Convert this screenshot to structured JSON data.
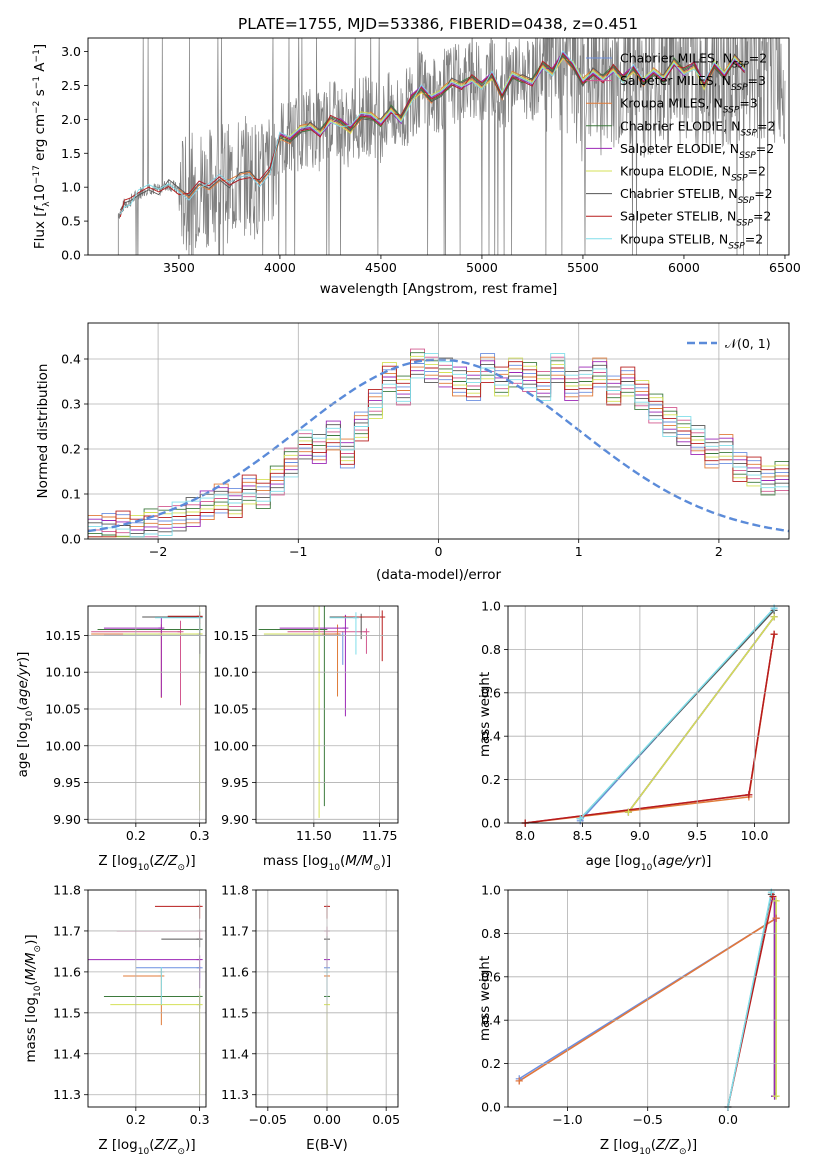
{
  "title": "PLATE=1755, MJD=53386, FIBERID=0438, z=0.451",
  "palette": [
    "#6b8fe0",
    "#d2588f",
    "#e07b39",
    "#3d7a3d",
    "#9b26b6",
    "#d4e157",
    "#555555",
    "#b71c1c",
    "#80deea"
  ],
  "legend": [
    {
      "name": "Chabrier MILES",
      "nssp": "2"
    },
    {
      "name": "Salpeter MILES",
      "nssp": "3"
    },
    {
      "name": "Kroupa MILES",
      "nssp": "3"
    },
    {
      "name": "Chabrier ELODIE",
      "nssp": "2"
    },
    {
      "name": "Salpeter ELODIE",
      "nssp": "2"
    },
    {
      "name": "Kroupa ELODIE",
      "nssp": "2"
    },
    {
      "name": "Chabrier STELIB",
      "nssp": "2"
    },
    {
      "name": "Salpeter STELIB",
      "nssp": "2"
    },
    {
      "name": "Kroupa STELIB",
      "nssp": "2"
    }
  ],
  "chart_data": [
    {
      "id": "spectrum",
      "type": "line",
      "xlabel": "wavelength [Angstrom, rest frame]",
      "ylabel": "Flux [f_λ 10^-17 erg cm^-2 s^-1 A^-1]",
      "xlim": [
        3050,
        6520
      ],
      "ylim": [
        0,
        3.2
      ],
      "xticks": [
        "3500",
        "4000",
        "4500",
        "5000",
        "5500",
        "6000",
        "6500"
      ],
      "yticks": [
        "0.0",
        "0.5",
        "1.0",
        "1.5",
        "2.0",
        "2.5",
        "3.0"
      ],
      "grid": false,
      "legend_position": "top-right",
      "data_color": "#808080",
      "data_start": 3200,
      "data_end": 6500,
      "model_x": [
        3210,
        3230,
        3260,
        3300,
        3350,
        3400,
        3450,
        3500,
        3550,
        3600,
        3650,
        3700,
        3750,
        3800,
        3850,
        3900,
        3950,
        4000,
        4050,
        4100,
        4150,
        4200,
        4250,
        4300,
        4350,
        4400,
        4450,
        4500,
        4550,
        4600,
        4650,
        4700,
        4750,
        4800,
        4850,
        4900,
        4950,
        5000,
        5050,
        5100,
        5150,
        5200,
        5250,
        5300,
        5350,
        5400,
        5450,
        5500,
        5550,
        5600,
        5650,
        5700,
        5750,
        5800,
        5850,
        5900,
        5950,
        6000,
        6050,
        6100,
        6150,
        6200,
        6250,
        6300
      ],
      "model_y": [
        0.62,
        0.75,
        0.8,
        0.9,
        1.0,
        0.95,
        1.05,
        0.95,
        0.85,
        1.05,
        1.0,
        1.15,
        1.05,
        1.15,
        1.2,
        1.05,
        1.25,
        1.75,
        1.7,
        1.85,
        1.9,
        1.8,
        2.0,
        1.95,
        1.85,
        2.05,
        2.05,
        1.95,
        2.15,
        2.0,
        2.3,
        2.45,
        2.3,
        2.4,
        2.55,
        2.5,
        2.6,
        2.5,
        2.65,
        2.35,
        2.65,
        2.6,
        2.55,
        2.8,
        2.7,
        2.95,
        2.8,
        2.55,
        2.7,
        2.6,
        2.75,
        2.6,
        2.75,
        2.55,
        2.7,
        2.6,
        2.85,
        2.7,
        2.8,
        2.5,
        2.8,
        2.65,
        2.9,
        2.75
      ],
      "series": [
        {
          "name": "Chabrier MILES",
          "start": 3500
        },
        {
          "name": "Salpeter MILES",
          "start": 3500
        },
        {
          "name": "Kroupa MILES",
          "start": 3500
        },
        {
          "name": "Chabrier ELODIE",
          "start": 4000
        },
        {
          "name": "Salpeter ELODIE",
          "start": 4000
        },
        {
          "name": "Kroupa ELODIE",
          "start": 4000
        },
        {
          "name": "Chabrier STELIB",
          "start": 3210
        },
        {
          "name": "Salpeter STELIB",
          "start": 3210
        },
        {
          "name": "Kroupa STELIB",
          "start": 3210
        }
      ]
    },
    {
      "id": "residuals",
      "type": "line",
      "xlabel": "(data-model)/error",
      "ylabel": "Normed distribution",
      "xlim": [
        -2.5,
        2.5
      ],
      "ylim": [
        0,
        0.48
      ],
      "xticks": [
        "−2",
        "−1",
        "0",
        "1",
        "2"
      ],
      "yticks": [
        "0.0",
        "0.1",
        "0.2",
        "0.3",
        "0.4"
      ],
      "grid": true,
      "legend": "𝒩(0, 1)",
      "legend_position": "top-right",
      "gaussian": {
        "mean": 0,
        "sigma": 1,
        "color": "#5b8bd9"
      },
      "bin_width": 0.1,
      "bin_start": -2.5,
      "hist_base": [
        0.02,
        0.025,
        0.03,
        0.02,
        0.035,
        0.04,
        0.05,
        0.06,
        0.075,
        0.09,
        0.08,
        0.11,
        0.1,
        0.13,
        0.17,
        0.21,
        0.2,
        0.23,
        0.19,
        0.25,
        0.3,
        0.36,
        0.33,
        0.39,
        0.38,
        0.37,
        0.35,
        0.34,
        0.38,
        0.35,
        0.37,
        0.36,
        0.34,
        0.38,
        0.34,
        0.35,
        0.37,
        0.33,
        0.35,
        0.32,
        0.29,
        0.26,
        0.24,
        0.22,
        0.19,
        0.2,
        0.16,
        0.15,
        0.13,
        0.14,
        0.12,
        0.1,
        0.09,
        0.08,
        0.07,
        0.05,
        0.05,
        0.04,
        0.03,
        0.025,
        0.015
      ]
    },
    {
      "id": "age-vs-metallicity",
      "type": "scatter",
      "xlabel": "Z [log10(Z/Z⊙)]",
      "ylabel": "age [log10(age/yr)]",
      "xlim": [
        0.125,
        0.31
      ],
      "ylim": [
        9.895,
        10.19
      ],
      "xticks": [
        "0.2",
        "0.3"
      ],
      "yticks": [
        "9.90",
        "9.95",
        "10.00",
        "10.05",
        "10.10",
        "10.15"
      ],
      "grid": true,
      "points": [
        {
          "x": 0.3,
          "y": 10.15,
          "xerr": 0.15,
          "yerr": 0.03
        },
        {
          "x": 0.27,
          "y": 10.155,
          "xerr": 0.14,
          "yerr": 0.1
        },
        {
          "x": 0.24,
          "y": 10.152,
          "xerr": 0.11,
          "yerr": 0.087
        },
        {
          "x": 0.3,
          "y": 10.158,
          "xerr": 0.16,
          "yerr": 0.06
        },
        {
          "x": 0.24,
          "y": 10.16,
          "xerr": 0.09,
          "yerr": 0.094
        },
        {
          "x": 0.3,
          "y": 10.152,
          "xerr": 0.12,
          "yerr": 0.24
        },
        {
          "x": 0.3,
          "y": 10.175,
          "xerr": 0.09,
          "yerr": 0.05
        },
        {
          "x": 0.3,
          "y": 10.176,
          "xerr": 0.05,
          "yerr": 0.01
        },
        {
          "x": 0.3,
          "y": 10.174,
          "xerr": 0.07,
          "yerr": 0.02
        }
      ]
    },
    {
      "id": "age-vs-mass",
      "type": "scatter",
      "xlabel": "mass [log10(M/M⊙)]",
      "ylabel": "",
      "xlim": [
        11.28,
        11.82
      ],
      "ylim": [
        9.895,
        10.19
      ],
      "xticks": [
        "11.50",
        "11.75"
      ],
      "yticks": [
        "9.90",
        "9.95",
        "10.00",
        "10.05",
        "10.10",
        "10.15"
      ],
      "grid": true,
      "points": [
        {
          "x": 11.61,
          "y": 10.15,
          "xerr": 0.3,
          "yerr": 0.04
        },
        {
          "x": 11.7,
          "y": 10.155,
          "xerr": 0.3,
          "yerr": 0.03
        },
        {
          "x": 11.59,
          "y": 10.152,
          "xerr": 0.25,
          "yerr": 0.085
        },
        {
          "x": 11.54,
          "y": 10.158,
          "xerr": 0.25,
          "yerr": 0.24
        },
        {
          "x": 11.62,
          "y": 10.16,
          "xerr": 0.25,
          "yerr": 0.12
        },
        {
          "x": 11.52,
          "y": 10.152,
          "xerr": 0.21,
          "yerr": 0.25
        },
        {
          "x": 11.68,
          "y": 10.175,
          "xerr": 0.12,
          "yerr": 0.03
        },
        {
          "x": 11.76,
          "y": 10.175,
          "xerr": 0.15,
          "yerr": 0.06
        },
        {
          "x": 11.66,
          "y": 10.174,
          "xerr": 0.1,
          "yerr": 0.05
        }
      ]
    },
    {
      "id": "mass-weight-vs-age",
      "type": "line",
      "xlabel": "age [log10(age/yr)]",
      "ylabel": "mass weight",
      "xlim": [
        7.85,
        10.3
      ],
      "ylim": [
        0,
        1.0
      ],
      "xticks": [
        "8.0",
        "8.5",
        "9.0",
        "9.5",
        "10.0"
      ],
      "yticks": [
        "0.0",
        "0.2",
        "0.4",
        "0.6",
        "0.8",
        "1.0"
      ],
      "grid": true,
      "series": [
        {
          "name": "Chabrier MILES",
          "x": [
            8.48,
            10.17
          ],
          "y": [
            0.01,
            0.99
          ]
        },
        {
          "name": "Salpeter MILES",
          "x": [
            8.0,
            9.95,
            10.17
          ],
          "y": [
            0.0,
            0.13,
            0.87
          ]
        },
        {
          "name": "Kroupa MILES",
          "x": [
            8.0,
            9.95,
            10.17
          ],
          "y": [
            0.0,
            0.12,
            0.87
          ]
        },
        {
          "name": "Chabrier ELODIE",
          "x": [
            8.9,
            10.17
          ],
          "y": [
            0.05,
            0.95
          ]
        },
        {
          "name": "Salpeter ELODIE",
          "x": [
            8.9,
            10.17
          ],
          "y": [
            0.05,
            0.95
          ]
        },
        {
          "name": "Kroupa ELODIE",
          "x": [
            8.9,
            10.17
          ],
          "y": [
            0.05,
            0.95
          ]
        },
        {
          "name": "Chabrier STELIB",
          "x": [
            8.48,
            10.17
          ],
          "y": [
            0.02,
            0.98
          ]
        },
        {
          "name": "Salpeter STELIB",
          "x": [
            8.0,
            9.95,
            10.17
          ],
          "y": [
            0.0,
            0.13,
            0.87
          ]
        },
        {
          "name": "Kroupa STELIB",
          "x": [
            8.48,
            10.17
          ],
          "y": [
            0.02,
            0.99
          ]
        }
      ]
    },
    {
      "id": "mass-vs-metallicity",
      "type": "scatter",
      "xlabel": "Z [log10(Z/Z⊙)]",
      "ylabel": "mass [log10(M/M⊙)]",
      "xlim": [
        0.125,
        0.31
      ],
      "ylim": [
        11.27,
        11.8
      ],
      "xticks": [
        "0.2",
        "0.3"
      ],
      "yticks": [
        "11.3",
        "11.4",
        "11.5",
        "11.6",
        "11.7",
        "11.8"
      ],
      "grid": true,
      "points": [
        {
          "x": 0.3,
          "y": 11.61,
          "xerr": 0.1,
          "yerr": 0.03
        },
        {
          "x": 0.3,
          "y": 11.7,
          "xerr": 0.13,
          "yerr": 0.02
        },
        {
          "x": 0.24,
          "y": 11.59,
          "xerr": 0.06,
          "yerr": 0.12
        },
        {
          "x": 0.3,
          "y": 11.54,
          "xerr": 0.15,
          "yerr": 0.03
        },
        {
          "x": 0.3,
          "y": 11.63,
          "xerr": 0.19,
          "yerr": 0.07
        },
        {
          "x": 0.3,
          "y": 11.52,
          "xerr": 0.14,
          "yerr": 0.22
        },
        {
          "x": 0.3,
          "y": 11.68,
          "xerr": 0.06,
          "yerr": 0.02
        },
        {
          "x": 0.3,
          "y": 11.76,
          "xerr": 0.07,
          "yerr": 0.03
        },
        {
          "x": 0.24,
          "y": 11.6,
          "xerr": 0.04,
          "yerr": 0.08
        }
      ]
    },
    {
      "id": "mass-vs-extinction",
      "type": "scatter",
      "xlabel": "E(B-V)",
      "ylabel": "",
      "xlim": [
        -0.06,
        0.06
      ],
      "ylim": [
        11.27,
        11.8
      ],
      "xticks": [
        "−0.05",
        "0.00",
        "0.05"
      ],
      "yticks": [
        "11.3",
        "11.4",
        "11.5",
        "11.6",
        "11.7",
        "11.8"
      ],
      "grid": true,
      "points": [
        {
          "x": 0,
          "y": 11.61,
          "yerr": 0.05
        },
        {
          "x": 0,
          "y": 11.7,
          "yerr": 0.07
        },
        {
          "x": 0,
          "y": 11.59,
          "yerr": 0.05
        },
        {
          "x": 0,
          "y": 11.54,
          "yerr": 0.1
        },
        {
          "x": 0,
          "y": 11.63,
          "yerr": 0.08
        },
        {
          "x": 0,
          "y": 11.52,
          "yerr": 0.22
        },
        {
          "x": 0,
          "y": 11.68,
          "yerr": 0.05
        },
        {
          "x": 0,
          "y": 11.76,
          "yerr": 0.03
        },
        {
          "x": 0,
          "y": 11.6,
          "yerr": 0.07
        }
      ]
    },
    {
      "id": "mass-weight-vs-metallicity",
      "type": "line",
      "xlabel": "Z [log10(Z/Z⊙)]",
      "ylabel": "mass weight",
      "xlim": [
        -1.37,
        0.38
      ],
      "ylim": [
        0,
        1.0
      ],
      "xticks": [
        "−1.0",
        "−0.5",
        "0.0"
      ],
      "yticks": [
        "0.0",
        "0.2",
        "0.4",
        "0.6",
        "0.8",
        "1.0"
      ],
      "grid": true,
      "series": [
        {
          "name": "Chabrier MILES",
          "x": [
            -1.3,
            0.3
          ],
          "y": [
            0.13,
            0.87
          ]
        },
        {
          "name": "Salpeter MILES",
          "x": [
            -1.3,
            0.3
          ],
          "y": [
            0.12,
            0.87
          ]
        },
        {
          "name": "Kroupa MILES",
          "x": [
            -1.3,
            0.3
          ],
          "y": [
            0.12,
            0.87
          ]
        },
        {
          "name": "Chabrier ELODIE",
          "x": [
            0.29,
            0.29
          ],
          "y": [
            0.05,
            0.95
          ]
        },
        {
          "name": "Salpeter ELODIE",
          "x": [
            0.29,
            0.29
          ],
          "y": [
            0.05,
            0.95
          ]
        },
        {
          "name": "Kroupa ELODIE",
          "x": [
            0.3,
            0.3
          ],
          "y": [
            0.05,
            0.95
          ]
        },
        {
          "name": "Chabrier STELIB",
          "x": [
            0.0,
            0.27
          ],
          "y": [
            0.0,
            0.98
          ]
        },
        {
          "name": "Salpeter STELIB",
          "x": [
            0.0,
            0.28
          ],
          "y": [
            0.0,
            0.97
          ]
        },
        {
          "name": "Kroupa STELIB",
          "x": [
            0.0,
            0.27
          ],
          "y": [
            0.0,
            0.99
          ]
        }
      ]
    }
  ]
}
